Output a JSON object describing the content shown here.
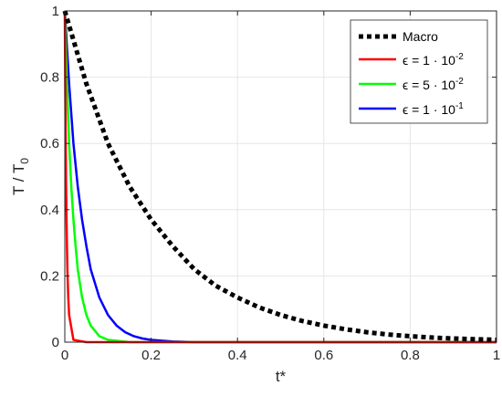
{
  "chart_data": {
    "type": "line",
    "xlabel": "t*",
    "ylabel": "T / T0",
    "ylabel_parts": {
      "main": "T / T",
      "sub": "0"
    },
    "xlim": [
      0,
      1
    ],
    "ylim": [
      0,
      1
    ],
    "xticks": [
      0,
      0.2,
      0.4,
      0.6,
      0.8,
      1
    ],
    "xtick_labels": [
      "0",
      "0.2",
      "0.4",
      "0.6",
      "0.8",
      "1"
    ],
    "yticks": [
      0,
      0.2,
      0.4,
      0.6,
      0.8,
      1
    ],
    "ytick_labels": [
      "0",
      "0.2",
      "0.4",
      "0.6",
      "0.8",
      "1"
    ],
    "grid": true,
    "legend_position": "top-right",
    "series": [
      {
        "name": "Macro",
        "legend": {
          "text": "Macro"
        },
        "color": "#000000",
        "style": "dotted",
        "x": [
          0,
          0.05,
          0.1,
          0.15,
          0.2,
          0.25,
          0.3,
          0.35,
          0.4,
          0.45,
          0.5,
          0.55,
          0.6,
          0.65,
          0.7,
          0.75,
          0.8,
          0.85,
          0.9,
          0.95,
          1.0
        ],
        "y": [
          1.0,
          0.78,
          0.6,
          0.47,
          0.37,
          0.29,
          0.22,
          0.17,
          0.135,
          0.105,
          0.082,
          0.064,
          0.05,
          0.039,
          0.03,
          0.023,
          0.018,
          0.014,
          0.011,
          0.009,
          0.007
        ]
      },
      {
        "name": "ε = 1 · 10-2",
        "legend": {
          "pre": "ϵ = 1 · 10",
          "exp": "-2"
        },
        "color": "#ff0000",
        "style": "solid",
        "x": [
          0,
          0.001,
          0.002,
          0.003,
          0.004,
          0.005,
          0.006,
          0.008,
          0.01,
          0.02,
          0.05,
          0.1,
          1.0
        ],
        "y": [
          1.0,
          0.78,
          0.6,
          0.47,
          0.37,
          0.29,
          0.22,
          0.135,
          0.082,
          0.007,
          0.0,
          0.0,
          0.0
        ]
      },
      {
        "name": "ε = 5 · 10-2",
        "legend": {
          "pre": "ϵ = 5 · 10",
          "exp": "-2"
        },
        "color": "#00ff00",
        "style": "solid",
        "x": [
          0,
          0.005,
          0.01,
          0.015,
          0.02,
          0.025,
          0.03,
          0.04,
          0.05,
          0.06,
          0.08,
          0.1,
          0.15,
          1.0
        ],
        "y": [
          1.0,
          0.78,
          0.6,
          0.47,
          0.37,
          0.29,
          0.22,
          0.135,
          0.082,
          0.05,
          0.018,
          0.007,
          0.0,
          0.0
        ]
      },
      {
        "name": "ε = 1 · 10-1",
        "legend": {
          "pre": "ϵ = 1 · 10",
          "exp": "-1"
        },
        "color": "#0000ff",
        "style": "solid",
        "x": [
          0,
          0.01,
          0.02,
          0.03,
          0.04,
          0.05,
          0.06,
          0.08,
          0.1,
          0.12,
          0.14,
          0.16,
          0.18,
          0.2,
          0.25,
          0.3,
          0.35,
          1.0
        ],
        "y": [
          1.0,
          0.78,
          0.6,
          0.47,
          0.37,
          0.29,
          0.22,
          0.135,
          0.082,
          0.05,
          0.03,
          0.018,
          0.011,
          0.007,
          0.002,
          0.0,
          0.0,
          0.0
        ]
      }
    ]
  }
}
